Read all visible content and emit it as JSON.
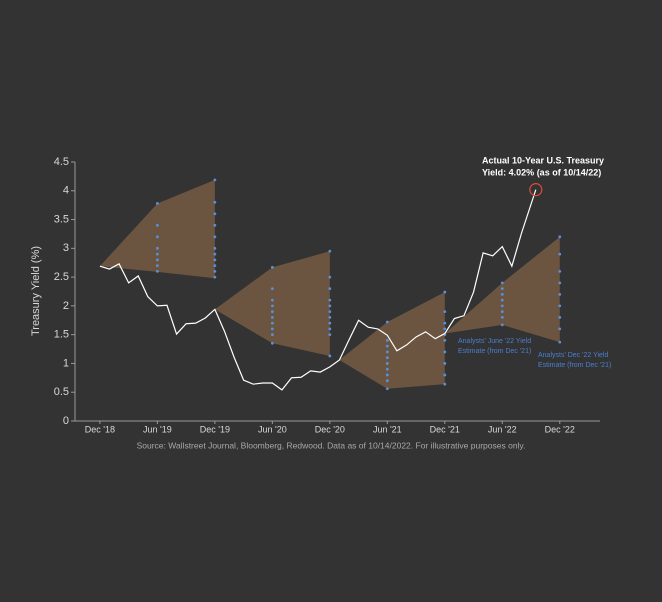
{
  "chart_data": {
    "type": "line",
    "y_label": "Treasury Yield (%)",
    "source": "Source: Wallstreet Journal, Bloomberg, Redwood. Data as of 10/14/2022. For illustrative purposes only.",
    "annotations": [
      {
        "lines": [
          "Actual 10-Year U.S. Treasury",
          "Yield: 4.02% (as of 10/14/22)"
        ],
        "color": "#ffffff"
      },
      {
        "lines": [
          "Analysts' June '22 Yield",
          "Estimate (from Dec '21)"
        ],
        "color": "#4a7fd0"
      },
      {
        "lines": [
          "Analysts' Dec '22 Yield",
          "Estimate (from Dec '21)"
        ],
        "color": "#4a7fd0"
      }
    ],
    "xlim": [
      -2.6,
      52.2
    ],
    "xticks": [
      {
        "value": 0,
        "label": "Dec '18"
      },
      {
        "value": 6,
        "label": "Jun '19"
      },
      {
        "value": 12,
        "label": "Dec '19"
      },
      {
        "value": 18,
        "label": "Jun '20"
      },
      {
        "value": 24,
        "label": "Dec '20"
      },
      {
        "value": 30,
        "label": "Jun '21"
      },
      {
        "value": 36,
        "label": "Dec '21"
      },
      {
        "value": 42,
        "label": "Jun '22"
      },
      {
        "value": 48,
        "label": "Dec '22"
      }
    ],
    "ylim": [
      0,
      4.5
    ],
    "yticks": [
      0,
      0.5,
      1,
      1.5,
      2,
      2.5,
      3,
      3.5,
      4,
      4.5
    ],
    "series": [
      {
        "color": "#ffffff",
        "x": [
          0,
          1,
          2,
          3,
          4,
          5,
          6,
          7,
          8,
          9,
          10,
          11,
          12,
          13,
          14,
          15,
          16,
          17,
          18,
          19,
          20,
          21,
          22,
          23,
          24,
          25,
          26,
          27,
          28,
          29,
          30,
          31,
          32,
          33,
          34,
          35,
          36,
          37,
          38,
          39,
          40,
          41,
          42,
          43,
          44,
          45.5
        ],
        "values": [
          2.69,
          2.64,
          2.73,
          2.4,
          2.52,
          2.16,
          2.0,
          2.01,
          1.51,
          1.69,
          1.7,
          1.79,
          1.94,
          1.56,
          1.11,
          0.71,
          0.64,
          0.66,
          0.66,
          0.54,
          0.75,
          0.76,
          0.87,
          0.85,
          0.94,
          1.06,
          1.41,
          1.75,
          1.63,
          1.6,
          1.49,
          1.22,
          1.32,
          1.46,
          1.55,
          1.43,
          1.52,
          1.78,
          1.83,
          2.24,
          2.92,
          2.87,
          3.03,
          2.69,
          3.26,
          4.02
        ]
      }
    ],
    "fans": [
      {
        "x": [
          0,
          6,
          12
        ],
        "upper": [
          2.69,
          3.78,
          4.19
        ],
        "lower": [
          2.69,
          2.59,
          2.48
        ]
      },
      {
        "x": [
          12,
          18,
          24
        ],
        "upper": [
          1.94,
          2.67,
          2.95
        ],
        "lower": [
          1.94,
          1.35,
          1.13
        ]
      },
      {
        "x": [
          25,
          30,
          36
        ],
        "upper": [
          1.06,
          1.72,
          2.24
        ],
        "lower": [
          1.06,
          0.56,
          0.64
        ]
      },
      {
        "x": [
          36,
          42,
          48
        ],
        "upper": [
          1.52,
          2.4,
          3.2
        ],
        "lower": [
          1.52,
          1.67,
          1.37
        ]
      }
    ],
    "fan_color": "#6b5540",
    "estimates": [
      {
        "x": 6,
        "values": [
          3.78,
          3.4,
          3.2,
          3.0,
          2.9,
          2.8,
          2.7,
          2.6
        ]
      },
      {
        "x": 12,
        "values": [
          4.19,
          3.8,
          3.6,
          3.4,
          3.2,
          3.0,
          2.9,
          2.8,
          2.7,
          2.6,
          2.5
        ]
      },
      {
        "x": 18,
        "values": [
          2.67,
          2.3,
          2.1,
          2.0,
          1.9,
          1.8,
          1.7,
          1.6,
          1.5,
          1.35
        ]
      },
      {
        "x": 24,
        "values": [
          2.95,
          2.5,
          2.3,
          2.1,
          2.0,
          1.9,
          1.8,
          1.7,
          1.6,
          1.5,
          1.13
        ]
      },
      {
        "x": 30,
        "values": [
          1.72,
          1.4,
          1.3,
          1.2,
          1.1,
          1.0,
          0.9,
          0.8,
          0.7,
          0.56
        ]
      },
      {
        "x": 36,
        "values": [
          2.24,
          1.9,
          1.7,
          1.6,
          1.5,
          1.4,
          1.2,
          1.0,
          0.8,
          0.64
        ]
      },
      {
        "x": 42,
        "values": [
          2.4,
          2.3,
          2.2,
          2.1,
          2.0,
          1.9,
          1.8,
          1.67
        ]
      },
      {
        "x": 48,
        "values": [
          3.2,
          2.9,
          2.6,
          2.4,
          2.2,
          2.0,
          1.8,
          1.6,
          1.37
        ]
      }
    ],
    "estimate_color": "#5b8fd8",
    "highlight_color": "#e04a3a"
  }
}
